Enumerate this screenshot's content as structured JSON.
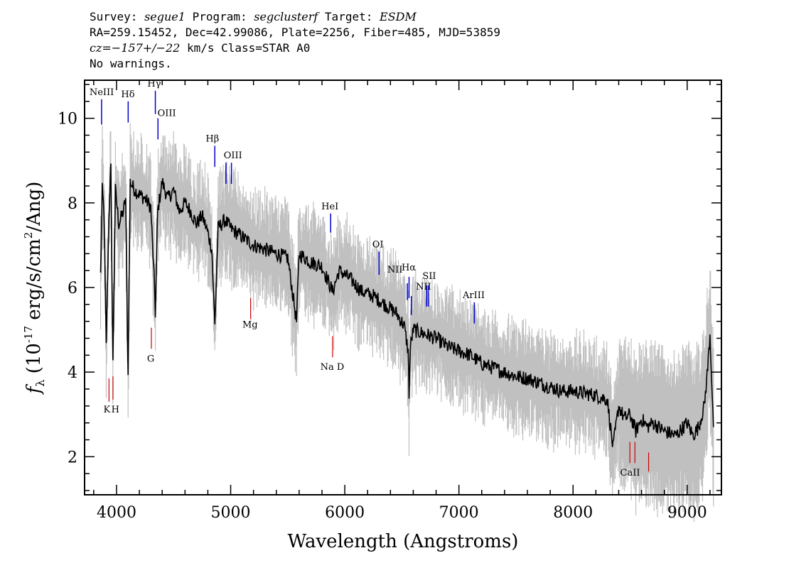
{
  "header": {
    "survey_label": "Survey:",
    "survey_value": "segue1",
    "program_label": "Program:",
    "program_value": "segclusterf",
    "target_label": "Target:",
    "target_value": "ESDM",
    "line2": "RA=259.15452, Dec=42.99086, Plate=2256, Fiber=485, MJD=53859",
    "redshift_value": "cz=−157+/−22",
    "redshift_rest": " km/s Class=STAR A0",
    "line4": "No warnings."
  },
  "chart_data": {
    "type": "line",
    "xlabel": "Wavelength (Angstroms)",
    "ylabel": "f_λ (10^-17 erg/s/cm^2/Ang)",
    "xlim": [
      3720,
      9300
    ],
    "ylim": [
      1.1,
      10.9
    ],
    "x_ticks": [
      4000,
      5000,
      6000,
      7000,
      8000,
      9000
    ],
    "y_ticks": [
      2,
      4,
      6,
      8,
      10
    ],
    "colors": {
      "flux": "#000000",
      "error": "#c0c0c0",
      "emission": "#0000cc",
      "absorption": "#cc0000"
    },
    "series": [
      {
        "role": "flux",
        "x": [
          3860,
          3875,
          3890,
          3910,
          3933,
          3950,
          3968,
          3990,
          4020,
          4060,
          4080,
          4101,
          4120,
          4160,
          4200,
          4250,
          4300,
          4330,
          4340,
          4360,
          4400,
          4450,
          4500,
          4550,
          4600,
          4650,
          4700,
          4750,
          4800,
          4835,
          4861,
          4890,
          4950,
          5000,
          5100,
          5200,
          5300,
          5400,
          5500,
          5577,
          5600,
          5700,
          5800,
          5893,
          5950,
          6050,
          6150,
          6250,
          6350,
          6450,
          6520,
          6555,
          6563,
          6575,
          6600,
          6700,
          6800,
          6900,
          7000,
          7100,
          7200,
          7300,
          7400,
          7500,
          7600,
          7700,
          7800,
          7900,
          8000,
          8100,
          8200,
          8300,
          8350,
          8400,
          8450,
          8500,
          8550,
          8600,
          8650,
          8700,
          8800,
          8900,
          9000,
          9050,
          9100,
          9150,
          9180,
          9200,
          9230
        ],
        "y": [
          6.3,
          8.3,
          7.8,
          4.6,
          7.7,
          8.8,
          4.2,
          8.3,
          7.5,
          7.8,
          8.1,
          3.9,
          8.5,
          8.3,
          8.2,
          8.1,
          7.9,
          6.2,
          5.4,
          7.8,
          8.5,
          8.1,
          8.3,
          7.8,
          8.0,
          7.8,
          7.5,
          7.7,
          7.3,
          6.9,
          5.1,
          7.4,
          7.6,
          7.4,
          7.2,
          7.0,
          6.9,
          6.8,
          6.7,
          5.2,
          6.8,
          6.6,
          6.5,
          5.9,
          6.4,
          6.2,
          5.9,
          5.8,
          5.6,
          5.4,
          5.1,
          4.5,
          3.5,
          4.6,
          5.0,
          4.9,
          4.8,
          4.6,
          4.5,
          4.4,
          4.2,
          4.1,
          4.0,
          3.9,
          3.85,
          3.75,
          3.65,
          3.55,
          3.55,
          3.5,
          3.45,
          3.35,
          2.2,
          3.2,
          2.9,
          3.0,
          2.6,
          2.9,
          2.7,
          2.8,
          2.6,
          2.5,
          2.8,
          2.5,
          2.7,
          3.2,
          4.1,
          4.9,
          2.7
        ]
      }
    ],
    "spectral_lines": {
      "emission": [
        {
          "name": "NeIII",
          "wavelength": 3869,
          "y_top": 10.45,
          "y_bottom": 9.85
        },
        {
          "name": "Hδ",
          "wavelength": 4102,
          "y_top": 10.4,
          "y_bottom": 9.9
        },
        {
          "name": "Hγ",
          "wavelength": 4340,
          "y_top": 10.65,
          "y_bottom": 10.1
        },
        {
          "name": "OIII",
          "wavelength": 4363,
          "y_top": 10.0,
          "y_bottom": 9.5
        },
        {
          "name": "Hβ",
          "wavelength": 4861,
          "y_top": 9.35,
          "y_bottom": 8.85
        },
        {
          "name": "OIII",
          "wavelength": 4959,
          "y_top": 8.95,
          "y_bottom": 8.45
        },
        {
          "name": "OIII",
          "wavelength": 5007,
          "y_top": 8.95,
          "y_bottom": 8.45
        },
        {
          "name": "HeI",
          "wavelength": 5876,
          "y_top": 7.75,
          "y_bottom": 7.3
        },
        {
          "name": "OI",
          "wavelength": 6300,
          "y_top": 6.85,
          "y_bottom": 6.3
        },
        {
          "name": "NII",
          "wavelength": 6548,
          "y_top": 6.1,
          "y_bottom": 5.7
        },
        {
          "name": "Hα",
          "wavelength": 6563,
          "y_top": 6.25,
          "y_bottom": 5.75
        },
        {
          "name": "NII",
          "wavelength": 6583,
          "y_top": 5.8,
          "y_bottom": 5.35
        },
        {
          "name": "SII",
          "wavelength": 6716,
          "y_top": 6.05,
          "y_bottom": 5.55
        },
        {
          "name": "SII",
          "wavelength": 6731,
          "y_top": 6.05,
          "y_bottom": 5.55
        },
        {
          "name": "ArIII",
          "wavelength": 7135,
          "y_top": 5.65,
          "y_bottom": 5.15
        }
      ],
      "absorption": [
        {
          "name": "K",
          "wavelength": 3934,
          "y_top": 3.85,
          "y_bottom": 3.3
        },
        {
          "name": "H",
          "wavelength": 3969,
          "y_top": 3.9,
          "y_bottom": 3.35
        },
        {
          "name": "G",
          "wavelength": 4305,
          "y_top": 5.05,
          "y_bottom": 4.55
        },
        {
          "name": "Mg",
          "wavelength": 5175,
          "y_top": 5.75,
          "y_bottom": 5.25
        },
        {
          "name": "Na D",
          "wavelength": 5893,
          "y_top": 4.85,
          "y_bottom": 4.35
        },
        {
          "name": "CaII",
          "wavelength": 8498,
          "y_top": 2.35,
          "y_bottom": 1.85
        },
        {
          "name": "CaII",
          "wavelength": 8542,
          "y_top": 2.35,
          "y_bottom": 1.85
        },
        {
          "name": "CaII",
          "wavelength": 8662,
          "y_top": 2.1,
          "y_bottom": 1.65
        }
      ],
      "labels": [
        {
          "text": "NeIII",
          "x": 3870,
          "y": 10.55
        },
        {
          "text": "Hδ",
          "x": 4100,
          "y": 10.5
        },
        {
          "text": "Hγ",
          "x": 4330,
          "y": 10.75
        },
        {
          "text": "OIII",
          "x": 4440,
          "y": 10.05
        },
        {
          "text": "Hβ",
          "x": 4840,
          "y": 9.45
        },
        {
          "text": "OIII",
          "x": 5020,
          "y": 9.05
        },
        {
          "text": "HeI",
          "x": 5870,
          "y": 7.85
        },
        {
          "text": "OI",
          "x": 6290,
          "y": 6.95
        },
        {
          "text": "NII",
          "x": 6440,
          "y": 6.35
        },
        {
          "text": "Hα",
          "x": 6560,
          "y": 6.4
        },
        {
          "text": "SII",
          "x": 6740,
          "y": 6.2
        },
        {
          "text": "NII",
          "x": 6690,
          "y": 5.95
        },
        {
          "text": "ArIII",
          "x": 7130,
          "y": 5.75
        },
        {
          "text": "K",
          "x": 3915,
          "y": 3.05
        },
        {
          "text": "H",
          "x": 3990,
          "y": 3.05
        },
        {
          "text": "G",
          "x": 4300,
          "y": 4.25
        },
        {
          "text": "Mg",
          "x": 5170,
          "y": 5.05
        },
        {
          "text": "Na D",
          "x": 5890,
          "y": 4.05
        },
        {
          "text": "CaII",
          "x": 8500,
          "y": 1.55
        }
      ]
    }
  }
}
